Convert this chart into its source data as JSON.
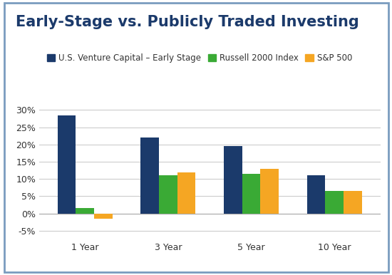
{
  "title": "Early-Stage vs. Publicly Traded Investing",
  "categories": [
    "1 Year",
    "3 Year",
    "5 Year",
    "10 Year"
  ],
  "series": [
    {
      "label": "U.S. Venture Capital – Early Stage",
      "color": "#1b3a6b",
      "values": [
        28.5,
        22.0,
        19.5,
        11.0
      ]
    },
    {
      "label": "Russell 2000 Index",
      "color": "#3aaa35",
      "values": [
        1.5,
        11.0,
        11.5,
        6.5
      ]
    },
    {
      "label": "S&P 500",
      "color": "#f5a623",
      "values": [
        -1.5,
        12.0,
        13.0,
        6.5
      ]
    }
  ],
  "ylim": [
    -7.5,
    34
  ],
  "yticks": [
    -5,
    0,
    5,
    10,
    15,
    20,
    25,
    30
  ],
  "ytick_labels": [
    "-5%",
    "0%",
    "5%",
    "10%",
    "15%",
    "20%",
    "25%",
    "30%"
  ],
  "background_color": "#ffffff",
  "border_color": "#7a9cbf",
  "grid_color": "#cccccc",
  "title_color": "#1b3a6b",
  "title_fontsize": 15,
  "legend_fontsize": 8.5,
  "tick_fontsize": 9,
  "bar_width": 0.22
}
